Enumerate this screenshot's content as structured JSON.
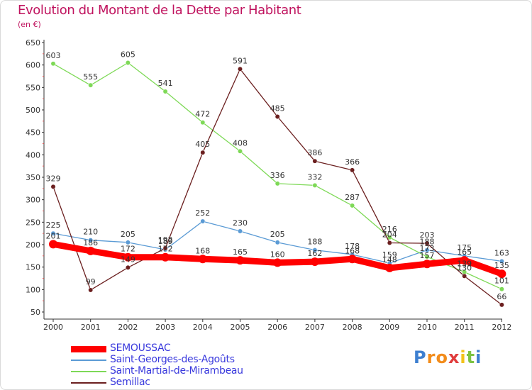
{
  "header": {
    "title": "Evolution du Montant de la Dette par Habitant",
    "subtitle": "(en €)"
  },
  "logo": {
    "text": "Proxiti"
  },
  "chart_data": {
    "type": "line",
    "title": "Evolution du Montant de la Dette par Habitant",
    "subtitle": "(en €)",
    "categories": [
      "2000",
      "2001",
      "2002",
      "2003",
      "2004",
      "2005",
      "2006",
      "2007",
      "2008",
      "2009",
      "2010",
      "2011",
      "2012"
    ],
    "y_ticks": [
      50,
      100,
      150,
      200,
      250,
      300,
      350,
      400,
      450,
      500,
      550,
      600,
      650
    ],
    "ylim": [
      50,
      650
    ],
    "grid": false,
    "legend_position": "bottom-left",
    "series": [
      {
        "name": "SEMOUSSAC",
        "color": "#ff0000",
        "emphasis": true,
        "values": [
          201,
          186,
          172,
          172,
          168,
          165,
          160,
          162,
          168,
          148,
          157,
          165,
          135
        ]
      },
      {
        "name": "Saint-Georges-des-Agoûts",
        "color": "#5b9bd5",
        "values": [
          225,
          210,
          205,
          189,
          252,
          230,
          205,
          188,
          178,
          159,
          188,
          175,
          163
        ]
      },
      {
        "name": "Saint-Martial-de-Mirambeau",
        "color": "#7ed957",
        "values": [
          603,
          555,
          605,
          541,
          472,
          408,
          336,
          332,
          287,
          216,
          173,
          139,
          101
        ]
      },
      {
        "name": "Semillac",
        "color": "#6b1f1f",
        "values": [
          329,
          99,
          149,
          192,
          405,
          591,
          485,
          386,
          366,
          204,
          203,
          130,
          66
        ]
      }
    ],
    "label_order": [
      0,
      1,
      3,
      2
    ]
  }
}
